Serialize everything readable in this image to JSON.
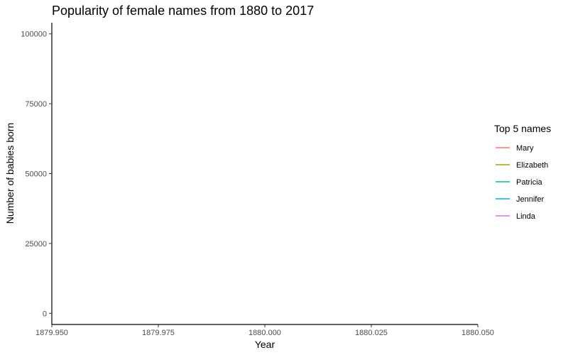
{
  "chart_data": {
    "type": "line",
    "title": "Popularity of female names from 1880 to 2017",
    "xlabel": "Year",
    "ylabel": "Number of babies born",
    "xlim": [
      1879.95,
      1880.05
    ],
    "ylim": [
      -4000,
      104000
    ],
    "x_ticks": [
      "1879.950",
      "1879.975",
      "1880.000",
      "1880.025",
      "1880.050"
    ],
    "x_tick_values": [
      1879.95,
      1879.975,
      1880.0,
      1880.025,
      1880.05
    ],
    "y_ticks": [
      "0",
      "25000",
      "50000",
      "75000",
      "100000"
    ],
    "y_tick_values": [
      0,
      25000,
      50000,
      75000,
      100000
    ],
    "grid": false,
    "legend": {
      "title": "Top 5 names",
      "position": "right",
      "entries": [
        "Mary",
        "Elizabeth",
        "Patricia",
        "Jennifer",
        "Linda"
      ]
    },
    "series": [
      {
        "name": "Mary",
        "color": "#F8766D",
        "values": []
      },
      {
        "name": "Elizabeth",
        "color": "#A3A500",
        "values": []
      },
      {
        "name": "Patricia",
        "color": "#00BF7D",
        "values": []
      },
      {
        "name": "Jennifer",
        "color": "#00B0F6",
        "values": []
      },
      {
        "name": "Linda",
        "color": "#E76BF3",
        "values": []
      }
    ]
  }
}
